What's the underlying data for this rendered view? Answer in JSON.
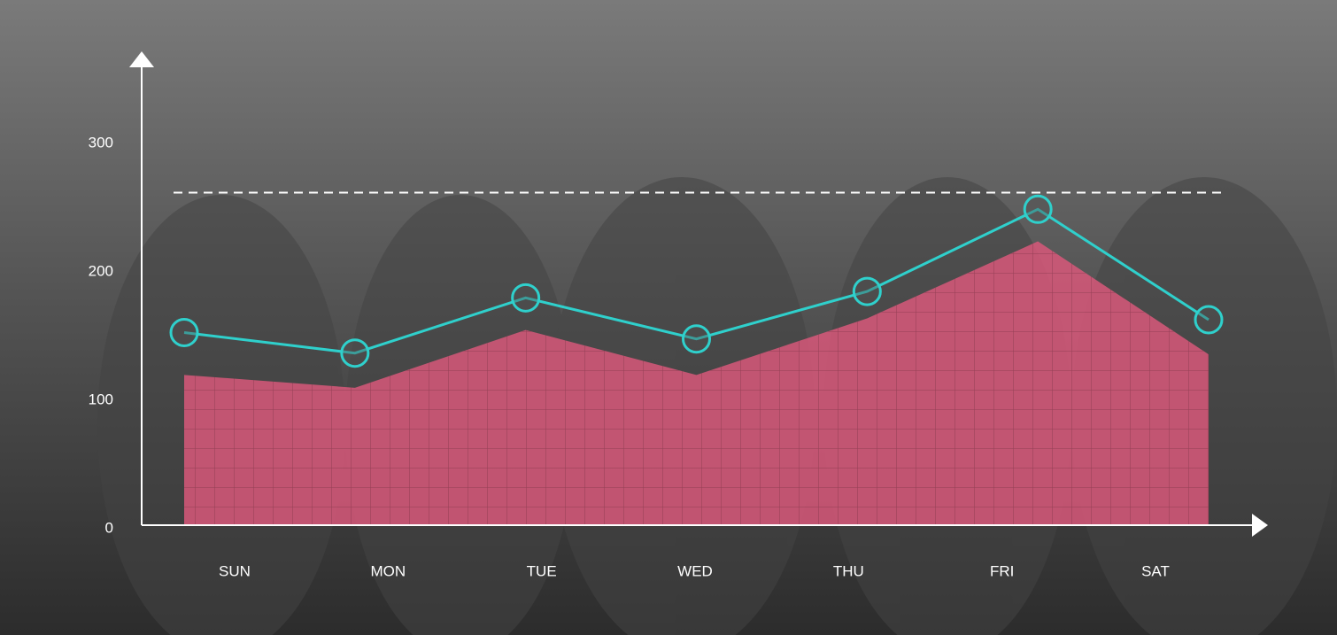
{
  "chart_data": {
    "type": "line-area",
    "categories": [
      "SUN",
      "MON",
      "TUE",
      "WED",
      "THU",
      "FRI",
      "SAT"
    ],
    "series": [
      {
        "color": "#d8587a",
        "kind": "area",
        "values": [
          117,
          107,
          152,
          117,
          161,
          221,
          133
        ]
      },
      {
        "color": "#2fd0cc",
        "kind": "line",
        "values": [
          150,
          134,
          177,
          145,
          182,
          246,
          160
        ]
      }
    ],
    "reference_line": 259,
    "ylim": [
      0,
      300
    ],
    "yticks": [
      0,
      100,
      200,
      300
    ],
    "grid": false
  }
}
